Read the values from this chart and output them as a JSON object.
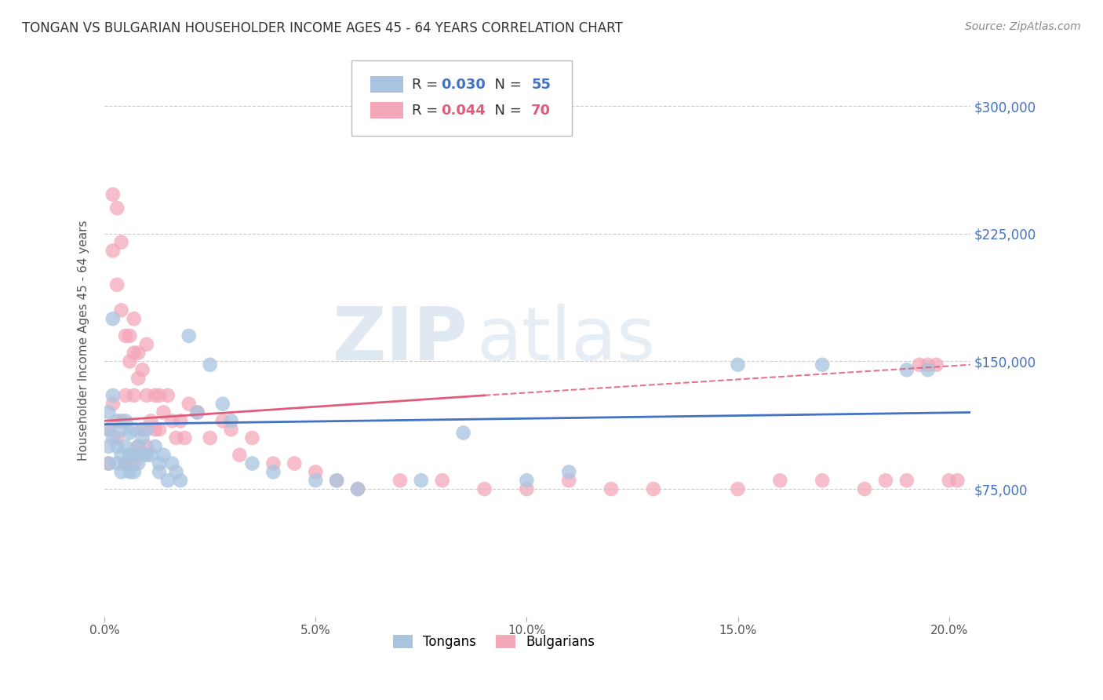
{
  "title": "TONGAN VS BULGARIAN HOUSEHOLDER INCOME AGES 45 - 64 YEARS CORRELATION CHART",
  "source": "Source: ZipAtlas.com",
  "ylabel": "Householder Income Ages 45 - 64 years",
  "ytick_labels": [
    "$75,000",
    "$150,000",
    "$225,000",
    "$300,000"
  ],
  "ytick_values": [
    75000,
    150000,
    225000,
    300000
  ],
  "ylim": [
    0,
    325000
  ],
  "xlim": [
    0.0,
    0.205
  ],
  "tongan_color": "#a8c4e0",
  "bulgarian_color": "#f4a7b9",
  "tongan_line_color": "#4472c4",
  "bulgarian_line_color": "#e05c7a",
  "watermark_zip": "ZIP",
  "watermark_atlas": "atlas",
  "tongan_R": 0.03,
  "tongan_N": 55,
  "bulgarian_R": 0.044,
  "bulgarian_N": 70,
  "tongan_x": [
    0.001,
    0.001,
    0.001,
    0.001,
    0.002,
    0.002,
    0.002,
    0.003,
    0.003,
    0.003,
    0.004,
    0.004,
    0.004,
    0.005,
    0.005,
    0.005,
    0.006,
    0.006,
    0.006,
    0.007,
    0.007,
    0.007,
    0.008,
    0.008,
    0.009,
    0.009,
    0.01,
    0.01,
    0.011,
    0.012,
    0.013,
    0.013,
    0.014,
    0.015,
    0.016,
    0.017,
    0.018,
    0.02,
    0.022,
    0.025,
    0.028,
    0.03,
    0.035,
    0.04,
    0.05,
    0.055,
    0.06,
    0.075,
    0.085,
    0.1,
    0.11,
    0.15,
    0.17,
    0.19,
    0.195
  ],
  "tongan_y": [
    120000,
    110000,
    100000,
    90000,
    175000,
    130000,
    105000,
    115000,
    100000,
    90000,
    110000,
    95000,
    85000,
    115000,
    100000,
    90000,
    108000,
    95000,
    85000,
    110000,
    95000,
    85000,
    100000,
    90000,
    105000,
    95000,
    110000,
    95000,
    95000,
    100000,
    90000,
    85000,
    95000,
    80000,
    90000,
    85000,
    80000,
    165000,
    120000,
    148000,
    125000,
    115000,
    90000,
    85000,
    80000,
    80000,
    75000,
    80000,
    108000,
    80000,
    85000,
    148000,
    148000,
    145000,
    145000
  ],
  "bulgarian_x": [
    0.001,
    0.001,
    0.002,
    0.002,
    0.002,
    0.003,
    0.003,
    0.003,
    0.004,
    0.004,
    0.004,
    0.005,
    0.005,
    0.005,
    0.006,
    0.006,
    0.006,
    0.007,
    0.007,
    0.007,
    0.007,
    0.008,
    0.008,
    0.008,
    0.009,
    0.009,
    0.01,
    0.01,
    0.01,
    0.011,
    0.012,
    0.012,
    0.013,
    0.013,
    0.014,
    0.015,
    0.016,
    0.017,
    0.018,
    0.019,
    0.02,
    0.022,
    0.025,
    0.028,
    0.03,
    0.032,
    0.035,
    0.04,
    0.045,
    0.05,
    0.055,
    0.06,
    0.07,
    0.08,
    0.09,
    0.1,
    0.11,
    0.12,
    0.13,
    0.15,
    0.16,
    0.17,
    0.18,
    0.185,
    0.19,
    0.193,
    0.195,
    0.197,
    0.2,
    0.202
  ],
  "bulgarian_y": [
    110000,
    90000,
    248000,
    215000,
    125000,
    240000,
    195000,
    105000,
    220000,
    180000,
    115000,
    165000,
    130000,
    90000,
    165000,
    150000,
    90000,
    175000,
    155000,
    130000,
    90000,
    155000,
    140000,
    100000,
    145000,
    110000,
    160000,
    130000,
    100000,
    115000,
    130000,
    110000,
    130000,
    110000,
    120000,
    130000,
    115000,
    105000,
    115000,
    105000,
    125000,
    120000,
    105000,
    115000,
    110000,
    95000,
    105000,
    90000,
    90000,
    85000,
    80000,
    75000,
    80000,
    80000,
    75000,
    75000,
    80000,
    75000,
    75000,
    75000,
    80000,
    80000,
    75000,
    80000,
    80000,
    148000,
    148000,
    148000,
    80000,
    80000
  ]
}
